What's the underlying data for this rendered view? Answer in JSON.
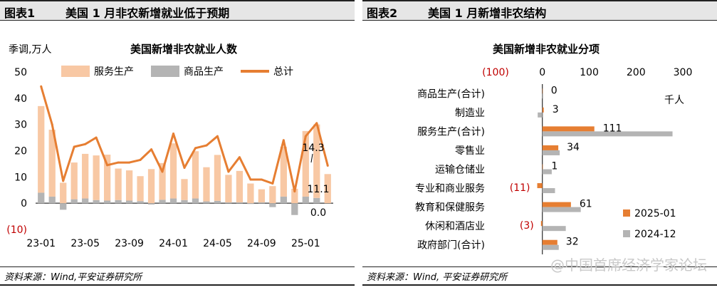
{
  "left_panel": {
    "label": "图表1",
    "title": "美国 1 月非农新增就业低于预期",
    "source": "资料来源：Wind,平安证券研究所"
  },
  "right_panel": {
    "label": "图表2",
    "title": "美国 1 月新增非农结构",
    "source": "资料来源：Wind, 平安证券研究所"
  },
  "watermark": "@中国首席经济学家论坛",
  "chart_data": [
    {
      "type": "bar",
      "title": "美国新增非农就业人数",
      "unit_label": "季调,万人",
      "ylim": [
        -10,
        50
      ],
      "yticks": [
        -10,
        0,
        10,
        20,
        30,
        40,
        50
      ],
      "ytick_labels": [
        "(10)",
        "0",
        "10",
        "20",
        "30",
        "40",
        "50"
      ],
      "x_tick_labels": [
        "23-01",
        "23-05",
        "23-09",
        "24-01",
        "24-05",
        "24-09",
        "25-01"
      ],
      "legend": [
        "服务生产",
        "商品生产",
        "总计"
      ],
      "colors": {
        "services": "#f8c8a4",
        "goods": "#b4b4b4",
        "total": "#e67e32"
      },
      "series": [
        {
          "name": "服务生产",
          "kind": "bar",
          "values": [
            33,
            25.5,
            7.8,
            14,
            17,
            17,
            17.5,
            12,
            11.5,
            9.5,
            13,
            14,
            21,
            8,
            18,
            13,
            17.5,
            10.5,
            12,
            7.5,
            5,
            6.5,
            19,
            5.5,
            25,
            28,
            11.1
          ]
        },
        {
          "name": "商品生产",
          "kind": "bar",
          "values": [
            4,
            2.5,
            -2.5,
            1.5,
            1.8,
            1.2,
            1.0,
            1.2,
            1.0,
            0.8,
            -0.5,
            1.3,
            1.8,
            1.2,
            1.8,
            0.7,
            0.9,
            0.3,
            0.3,
            -0.3,
            0.3,
            -1.5,
            2.5,
            -4.5,
            2.5,
            2.0,
            0.0
          ]
        },
        {
          "name": "总计",
          "kind": "line",
          "values": [
            44.5,
            30.0,
            8.5,
            21.5,
            22.5,
            25.0,
            14.5,
            15.5,
            15.5,
            16.5,
            20.5,
            12.0,
            26.5,
            13.5,
            21.0,
            22.0,
            25.5,
            12.0,
            17.5,
            9.0,
            9.0,
            7.5,
            24.0,
            4.5,
            25.5,
            30.5,
            14.3
          ]
        }
      ],
      "annotations": [
        "14.3",
        "11.1",
        "0.0"
      ]
    },
    {
      "type": "bar",
      "orientation": "horizontal",
      "title": "美国新增非农就业分项",
      "unit_label": "千人",
      "xlim": [
        -100,
        300
      ],
      "xticks": [
        -100,
        0,
        100,
        200,
        300
      ],
      "xtick_labels": [
        "(100)",
        "0",
        "100",
        "200",
        "300"
      ],
      "categories": [
        "商品生产(合计)",
        "制造业",
        "服务生产(合计)",
        "零售业",
        "运输仓储业",
        "专业和商业服务",
        "教育和保健服务",
        "休闲和酒店业",
        "政府部门(合计)"
      ],
      "series": [
        {
          "name": "2025-01",
          "color": "#e67e32",
          "values": [
            0,
            3,
            111,
            34,
            1,
            -11,
            61,
            -3,
            32
          ]
        },
        {
          "name": "2024-12",
          "color": "#b4b4b4",
          "values": [
            -1,
            -10,
            278,
            37,
            20,
            27,
            82,
            50,
            35
          ]
        }
      ],
      "data_labels": [
        "0",
        "3",
        "111",
        "34",
        "1",
        "(11)",
        "61",
        "(3)",
        "32"
      ]
    }
  ]
}
